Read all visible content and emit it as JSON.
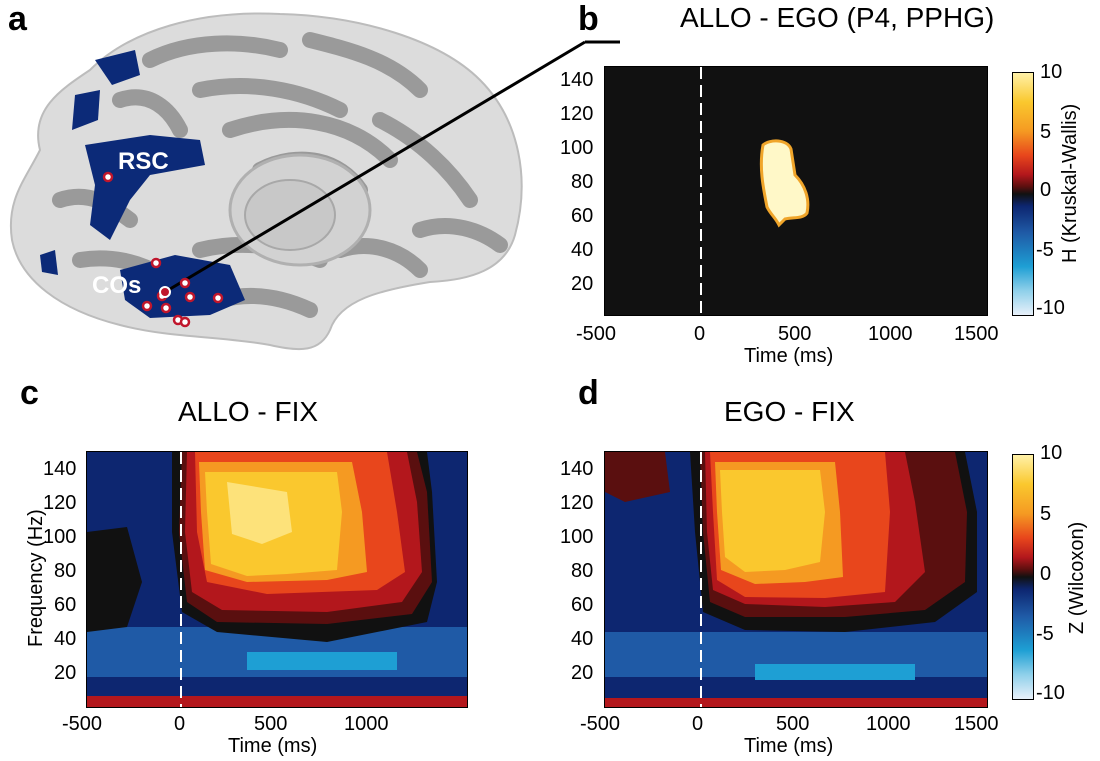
{
  "panel_labels": {
    "a": "a",
    "b": "b",
    "c": "c",
    "d": "d"
  },
  "brain": {
    "rsc_label": "RSC",
    "cos_label": "COs"
  },
  "titles": {
    "b": "ALLO - EGO (P4, PPHG)",
    "c": "ALLO - FIX",
    "d": "EGO - FIX"
  },
  "axes": {
    "x_label": "Time (ms)",
    "y_label": "Frequency (Hz)",
    "y_ticks": [
      "20",
      "40",
      "60",
      "80",
      "100",
      "120",
      "140"
    ],
    "x_ticks_full": [
      "-500",
      "0",
      "500",
      "1000",
      "1500"
    ],
    "x_ticks_c": [
      "-500",
      "0",
      "500",
      "1000"
    ]
  },
  "colorbars": {
    "b": {
      "label": "H (Kruskal-Wallis)",
      "ticks": [
        "10",
        "5",
        "0",
        "-5",
        "-10"
      ]
    },
    "d": {
      "label": "Z (Wilcoxon)",
      "ticks": [
        "10",
        "5",
        "0",
        "-5",
        "-10"
      ]
    }
  },
  "colors": {
    "brain_light": "#dcdcdc",
    "brain_dark": "#9a9a9a",
    "roi": "#0c2a78",
    "scale": [
      "#e8f0fa",
      "#8fd0ea",
      "#1e9fd4",
      "#1f5aa6",
      "#0d2670",
      "#111111",
      "#5a0f0f",
      "#b3171c",
      "#e8461c",
      "#f59a22",
      "#fac82e",
      "#fff1a8"
    ]
  },
  "chart_data": [
    {
      "type": "heatmap",
      "title": "ALLO - EGO (P4, PPHG)",
      "xlabel": "Time (ms)",
      "ylabel": "",
      "xlim": [
        -500,
        1500
      ],
      "ylim": [
        0,
        150
      ],
      "colorbar_label": "H (Kruskal-Wallis)",
      "clim": [
        -10,
        10
      ],
      "significant_cluster": {
        "time_ms": [
          300,
          520
        ],
        "freq_hz": [
          60,
          108
        ],
        "value": 10
      }
    },
    {
      "type": "heatmap",
      "title": "ALLO - FIX",
      "xlabel": "Time (ms)",
      "ylabel": "Frequency (Hz)",
      "xlim": [
        -500,
        1500
      ],
      "ylim": [
        0,
        150
      ],
      "clim": [
        -10,
        10
      ],
      "peak_region": {
        "time_ms": [
          50,
          1050
        ],
        "freq_hz": [
          50,
          150
        ],
        "max_value": 10
      }
    },
    {
      "type": "heatmap",
      "title": "EGO - FIX",
      "xlabel": "Time (ms)",
      "ylabel": "",
      "xlim": [
        -500,
        1500
      ],
      "ylim": [
        0,
        150
      ],
      "colorbar_label": "Z (Wilcoxon)",
      "clim": [
        -10,
        10
      ],
      "peak_region": {
        "time_ms": [
          50,
          1000
        ],
        "freq_hz": [
          50,
          150
        ],
        "max_value": 9
      }
    }
  ]
}
